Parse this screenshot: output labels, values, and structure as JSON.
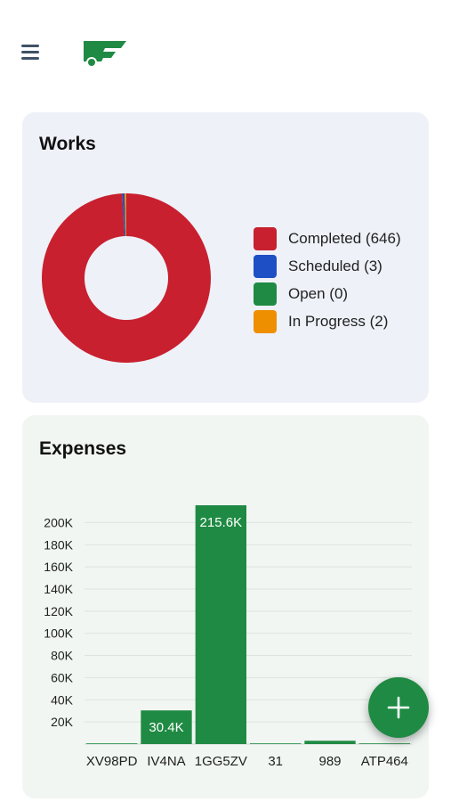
{
  "header": {
    "menu_icon": "hamburger-menu-icon",
    "logo_icon": "truck-logo-icon",
    "brand_color": "#1f8a43"
  },
  "works": {
    "title": "Works",
    "chart_data": {
      "type": "pie",
      "donut": true,
      "categories": [
        "Completed",
        "Scheduled",
        "Open",
        "In Progress"
      ],
      "values": [
        646,
        3,
        0,
        2
      ],
      "colors": [
        "#c8202f",
        "#1f4fc4",
        "#1f8a43",
        "#ee8f00"
      ],
      "legend_position": "right",
      "legend_labels": [
        "Completed (646)",
        "Scheduled (3)",
        "Open (0)",
        "In Progress (2)"
      ]
    }
  },
  "expenses": {
    "title": "Expenses",
    "chart_data": {
      "type": "bar",
      "categories": [
        "XV98PD",
        "IV4NA",
        "1GG5ZV",
        "31",
        "989",
        "ATP464"
      ],
      "values": [
        0,
        30400,
        215600,
        500,
        3000,
        600
      ],
      "data_labels": [
        "",
        "30.4K",
        "215.6K",
        "",
        "",
        ""
      ],
      "ylim": [
        0,
        215600
      ],
      "yticks": [
        20000,
        40000,
        60000,
        80000,
        100000,
        120000,
        140000,
        160000,
        180000,
        200000
      ],
      "ytick_labels": [
        "20K",
        "40K",
        "60K",
        "80K",
        "100K",
        "120K",
        "140K",
        "160K",
        "180K",
        "200K"
      ],
      "grid": true,
      "bar_color": "#1f8a43"
    }
  },
  "fab": {
    "icon": "plus-icon"
  }
}
